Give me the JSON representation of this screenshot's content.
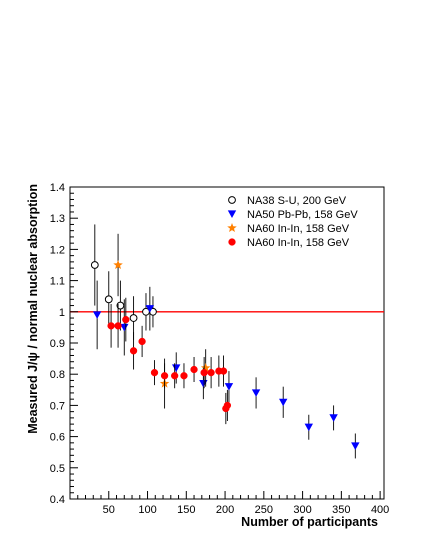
{
  "chart_data": {
    "type": "scatter",
    "title": "",
    "xlabel": "Number of participants",
    "ylabel": "Measured J/ψ / normal nuclear absorption",
    "xlim": [
      0,
      405
    ],
    "ylim": [
      0.4,
      1.4
    ],
    "xticks": [
      50,
      100,
      150,
      200,
      250,
      300,
      350,
      400
    ],
    "yticks": [
      0.4,
      0.5,
      0.6,
      0.7,
      0.8,
      0.9,
      1.0,
      1.1,
      1.2,
      1.3,
      1.4
    ],
    "xtick_labels": [
      "50",
      "100",
      "150",
      "200",
      "250",
      "300",
      "350",
      "400"
    ],
    "ytick_labels": [
      "0.4",
      "0.5",
      "0.6",
      "0.7",
      "0.8",
      "0.9",
      "1",
      "1.1",
      "1.2",
      "1.3",
      "1.4"
    ],
    "reference_line": {
      "y": 1.0,
      "color": "#ff0000"
    },
    "grid": false,
    "legend_position": "top-right",
    "series": [
      {
        "name": "NA38 S-U, 200 GeV",
        "marker": "open-circle",
        "color": "#000000",
        "points": [
          {
            "x": 32,
            "y": 1.15,
            "err": 0.13
          },
          {
            "x": 50,
            "y": 1.04,
            "err": 0.09
          },
          {
            "x": 65,
            "y": 1.02,
            "err": 0.08
          },
          {
            "x": 82,
            "y": 0.98,
            "err": 0.07
          },
          {
            "x": 98,
            "y": 1.0,
            "err": 0.06
          },
          {
            "x": 107,
            "y": 1.0,
            "err": 0.05
          }
        ]
      },
      {
        "name": "NA50 Pb-Pb, 158 GeV",
        "marker": "down-triangle",
        "color": "#0000ff",
        "points": [
          {
            "x": 35,
            "y": 0.99,
            "err": 0.11
          },
          {
            "x": 70,
            "y": 0.95,
            "err": 0.09
          },
          {
            "x": 103,
            "y": 1.01,
            "err": 0.07
          },
          {
            "x": 137,
            "y": 0.82,
            "err": 0.05
          },
          {
            "x": 172,
            "y": 0.77,
            "err": 0.05
          },
          {
            "x": 205,
            "y": 0.76,
            "err": 0.05
          },
          {
            "x": 240,
            "y": 0.74,
            "err": 0.05
          },
          {
            "x": 275,
            "y": 0.71,
            "err": 0.05
          },
          {
            "x": 308,
            "y": 0.63,
            "err": 0.04
          },
          {
            "x": 340,
            "y": 0.66,
            "err": 0.04
          },
          {
            "x": 368,
            "y": 0.57,
            "err": 0.04
          }
        ]
      },
      {
        "name": "NA60 In-In, 158 GeV",
        "marker": "star",
        "color": "#ff8000",
        "points": [
          {
            "x": 62,
            "y": 1.15,
            "err": 0.1
          },
          {
            "x": 122,
            "y": 0.77,
            "err": 0.08
          },
          {
            "x": 175,
            "y": 0.82,
            "err": 0.06
          }
        ]
      },
      {
        "name": "NA60 In-In, 158 GeV",
        "marker": "filled-circle",
        "color": "#ff0000",
        "points": [
          {
            "x": 53,
            "y": 0.955,
            "err": 0.07
          },
          {
            "x": 62,
            "y": 0.955,
            "err": 0.07
          },
          {
            "x": 72,
            "y": 0.975,
            "err": 0.07
          },
          {
            "x": 82,
            "y": 0.875,
            "err": 0.06
          },
          {
            "x": 93,
            "y": 0.905,
            "err": 0.05
          },
          {
            "x": 109,
            "y": 0.805,
            "err": 0.04
          },
          {
            "x": 122,
            "y": 0.795,
            "err": 0.04
          },
          {
            "x": 135,
            "y": 0.795,
            "err": 0.04
          },
          {
            "x": 147,
            "y": 0.795,
            "err": 0.04
          },
          {
            "x": 160,
            "y": 0.815,
            "err": 0.04
          },
          {
            "x": 173,
            "y": 0.805,
            "err": 0.05
          },
          {
            "x": 182,
            "y": 0.805,
            "err": 0.05
          },
          {
            "x": 192,
            "y": 0.81,
            "err": 0.05
          },
          {
            "x": 198,
            "y": 0.81,
            "err": 0.05
          },
          {
            "x": 201,
            "y": 0.69,
            "err": 0.05
          },
          {
            "x": 203,
            "y": 0.7,
            "err": 0.05
          }
        ]
      }
    ]
  }
}
